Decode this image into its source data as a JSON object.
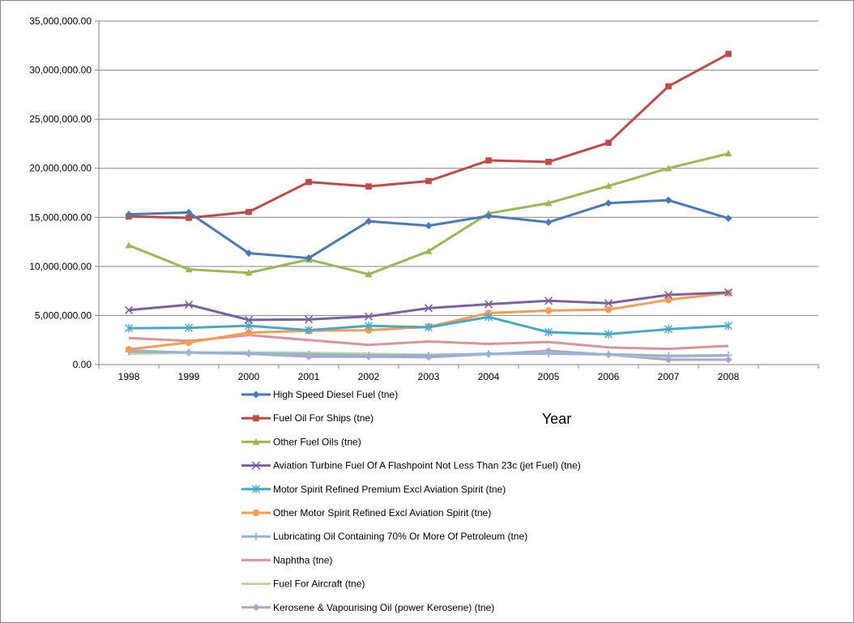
{
  "chart_data": {
    "type": "line",
    "title": "",
    "xlabel": "Year",
    "ylabel": "",
    "ylim": [
      0,
      35000000
    ],
    "ytick_step": 5000000,
    "yticks": [
      "0.00",
      "5,000,000.00",
      "10,000,000.00",
      "15,000,000.00",
      "20,000,000.00",
      "25,000,000.00",
      "30,000,000.00",
      "35,000,000.00"
    ],
    "categories": [
      "1998",
      "1999",
      "2000",
      "2001",
      "2002",
      "2003",
      "2004",
      "2005",
      "2006",
      "2007",
      "2008"
    ],
    "grid": "horizontal",
    "legend_position": "bottom",
    "series": [
      {
        "name": "High Speed Diesel Fuel (tne)",
        "color": "#4a7ab5",
        "marker": "diamond",
        "values": [
          15300000,
          15500000,
          11350000,
          10850000,
          14600000,
          14150000,
          15150000,
          14500000,
          16450000,
          16750000,
          14900000
        ]
      },
      {
        "name": "Fuel Oil For Ships (tne)",
        "color": "#be4b48",
        "marker": "square",
        "values": [
          15100000,
          14950000,
          15550000,
          18600000,
          18150000,
          18700000,
          20800000,
          20650000,
          22600000,
          28350000,
          31650000
        ]
      },
      {
        "name": "Other Fuel Oils (tne)",
        "color": "#98b954",
        "marker": "triangle",
        "values": [
          12150000,
          9700000,
          9350000,
          10700000,
          9200000,
          11550000,
          15400000,
          16450000,
          18200000,
          20000000,
          21500000
        ]
      },
      {
        "name": "Aviation Turbine Fuel Of A Flashpoint Not Less Than 23c (jet Fuel) (tne)",
        "color": "#7d60a0",
        "marker": "x",
        "values": [
          5550000,
          6100000,
          4550000,
          4600000,
          4900000,
          5750000,
          6150000,
          6500000,
          6250000,
          7100000,
          7350000
        ]
      },
      {
        "name": "Motor Spirit Refined Premium Excl Aviation Spirit (tne)",
        "color": "#46aac5",
        "marker": "star",
        "values": [
          3700000,
          3750000,
          3950000,
          3500000,
          3950000,
          3800000,
          4850000,
          3300000,
          3100000,
          3600000,
          3950000
        ]
      },
      {
        "name": "Other Motor Spirit Refined Excl Aviation Spirit (tne)",
        "color": "#f59d56",
        "marker": "circle",
        "values": [
          1550000,
          2250000,
          3250000,
          3450000,
          3500000,
          3850000,
          5250000,
          5500000,
          5600000,
          6600000,
          7300000
        ]
      },
      {
        "name": "Lubricating Oil Containing 70% Or More Of Petroleum (tne)",
        "color": "#95b3d7",
        "marker": "plus",
        "values": [
          1300000,
          1250000,
          1150000,
          1050000,
          950000,
          950000,
          1100000,
          1100000,
          1050000,
          900000,
          950000
        ]
      },
      {
        "name": "Naphtha (tne)",
        "color": "#d99694",
        "marker": "none",
        "values": [
          2700000,
          2400000,
          3000000,
          2500000,
          2000000,
          2350000,
          2100000,
          2300000,
          1750000,
          1600000,
          1900000
        ]
      },
      {
        "name": "Fuel For Aircraft (tne)",
        "color": "#c3d69b",
        "marker": "none",
        "values": [
          1100000,
          1200000,
          1250000,
          1200000,
          1100000,
          1000000,
          1050000,
          1150000,
          1000000,
          800000,
          900000
        ]
      },
      {
        "name": "Kerosene & Vapourising Oil (power Kerosene) (tne)",
        "color": "#b3a2c7",
        "marker": "diamond",
        "values": [
          1450000,
          1200000,
          1100000,
          800000,
          800000,
          750000,
          1050000,
          1400000,
          1000000,
          500000,
          500000
        ]
      }
    ]
  }
}
